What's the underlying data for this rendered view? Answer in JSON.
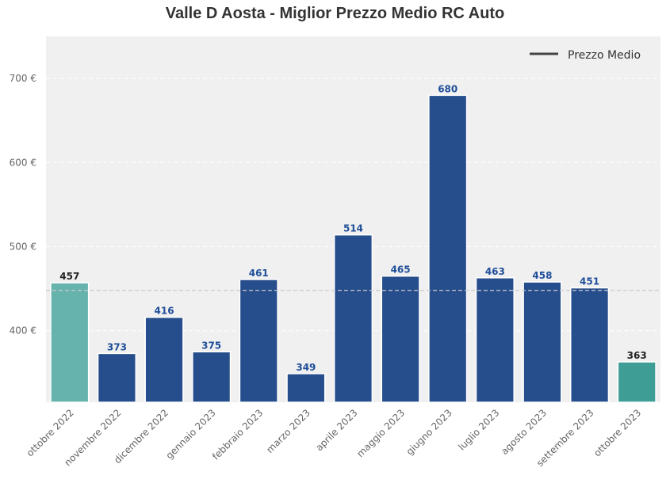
{
  "chart_data": {
    "type": "bar",
    "title": "Valle D Aosta - Miglior Prezzo Medio RC Auto",
    "xlabel": "",
    "ylabel": "",
    "categories": [
      "ottobre 2022",
      "novembre 2022",
      "dicembre 2022",
      "gennaio 2023",
      "febbraio 2023",
      "marzo 2023",
      "aprile 2023",
      "maggio 2023",
      "giugno 2023",
      "luglio 2023",
      "agosto 2023",
      "settembre 2023",
      "ottobre 2023"
    ],
    "values": [
      457,
      373,
      416,
      375,
      461,
      349,
      514,
      465,
      680,
      463,
      458,
      451,
      363
    ],
    "value_labels": [
      "457",
      "373",
      "416",
      "375",
      "461",
      "349",
      "514",
      "465",
      "680",
      "463",
      "458",
      "451",
      "363"
    ],
    "ylim": [
      315,
      750
    ],
    "yticks": [
      400,
      500,
      600,
      700
    ],
    "ytick_labels": [
      "400 €",
      "500 €",
      "600 €",
      "700 €"
    ],
    "average_line": 448,
    "legend": {
      "label": "Prezzo Medio",
      "placement": "top-right"
    },
    "grid": true,
    "colors": {
      "bar": "#264d8c",
      "first_bar": "#66b2ad",
      "last_bar": "#3e9e96",
      "label_blue": "#1f4e99",
      "label_dark": "#222222",
      "plot_bg": "#f0f0f0",
      "avg_line": "#cccccc",
      "legend_line": "#444444"
    }
  }
}
